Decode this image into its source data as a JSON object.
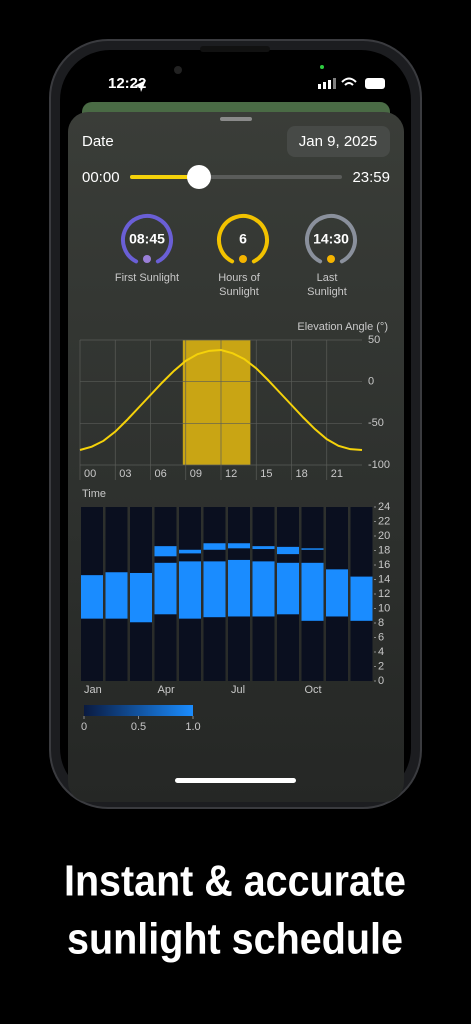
{
  "status_bar": {
    "time": "12:22"
  },
  "header": {
    "date_label": "Date",
    "date": "Jan 9, 2025"
  },
  "slider": {
    "start": "00:00",
    "end": "23:59"
  },
  "gauges": [
    {
      "value": "08:45",
      "label": [
        "First Sunlight"
      ],
      "color": "#6a5fd6"
    },
    {
      "value": "6",
      "label": [
        "Hours of",
        "Sunlight"
      ],
      "color": "#f2c200"
    },
    {
      "value": "14:30",
      "label": [
        "Last",
        "Sunlight"
      ],
      "color": "#8a909c"
    }
  ],
  "elevation_chart": {
    "type": "line",
    "y_label": "Elevation Angle (°)",
    "x_label": "Time",
    "x": [
      0,
      1,
      2,
      3,
      4,
      5,
      6,
      7,
      8,
      9,
      10,
      11,
      12,
      13,
      14,
      15,
      16,
      17,
      18,
      19,
      20,
      21,
      22,
      23,
      24
    ],
    "values": [
      -82,
      -78,
      -71,
      -60,
      -46,
      -31,
      -16,
      -1,
      13,
      25,
      33,
      37,
      38,
      34,
      27,
      16,
      2,
      -13,
      -28,
      -43,
      -57,
      -69,
      -77,
      -81,
      -82
    ],
    "xlim": [
      0,
      24
    ],
    "ylim": [
      -100,
      50
    ],
    "yticks": [
      50,
      0,
      -50,
      -100
    ],
    "xticks": [
      {
        "value": 0,
        "label": "00"
      },
      {
        "value": 3,
        "label": "03"
      },
      {
        "value": 6,
        "label": "06"
      },
      {
        "value": 9,
        "label": "09"
      },
      12,
      15,
      18,
      21
    ],
    "highlight": [
      8.75,
      14.5
    ],
    "color": "#f5d20a",
    "highlight_color": "#c9a514",
    "grid": true
  },
  "schedule_chart": {
    "type": "range_bar",
    "categories": [
      "Jan",
      null,
      null,
      "Apr",
      null,
      null,
      "Jul",
      null,
      null,
      "Oct",
      null,
      null
    ],
    "sunlight_start": [
      8.6,
      8.6,
      8.1,
      9.2,
      8.6,
      8.8,
      8.9,
      8.9,
      9.2,
      8.3,
      8.9,
      8.3
    ],
    "sunlight_end": [
      14.6,
      15.0,
      14.9,
      16.3,
      16.5,
      16.5,
      16.7,
      16.5,
      16.3,
      16.3,
      15.4,
      14.4
    ],
    "extra_start": [
      null,
      null,
      null,
      17.2,
      17.6,
      18.1,
      18.3,
      18.2,
      17.5,
      18.1,
      null,
      null
    ],
    "extra_end": [
      null,
      null,
      null,
      18.6,
      18.1,
      19.0,
      19.0,
      18.6,
      18.5,
      18.3,
      null,
      null
    ],
    "ylim": [
      0,
      24
    ],
    "yticks": [
      0,
      2,
      4,
      6,
      8,
      10,
      12,
      14,
      16,
      18,
      20,
      22,
      24
    ],
    "color": "#1a8cff",
    "background": "#0a0f1f"
  },
  "colorbar": {
    "range": [
      0,
      1
    ],
    "ticks": [
      0,
      0.5,
      {
        "value": 1,
        "label": "1.0"
      }
    ],
    "colors": [
      "#0a1a40",
      "#1a8cff"
    ]
  },
  "caption": {
    "lines": [
      "Instant & accurate",
      "sunlight schedule"
    ]
  }
}
